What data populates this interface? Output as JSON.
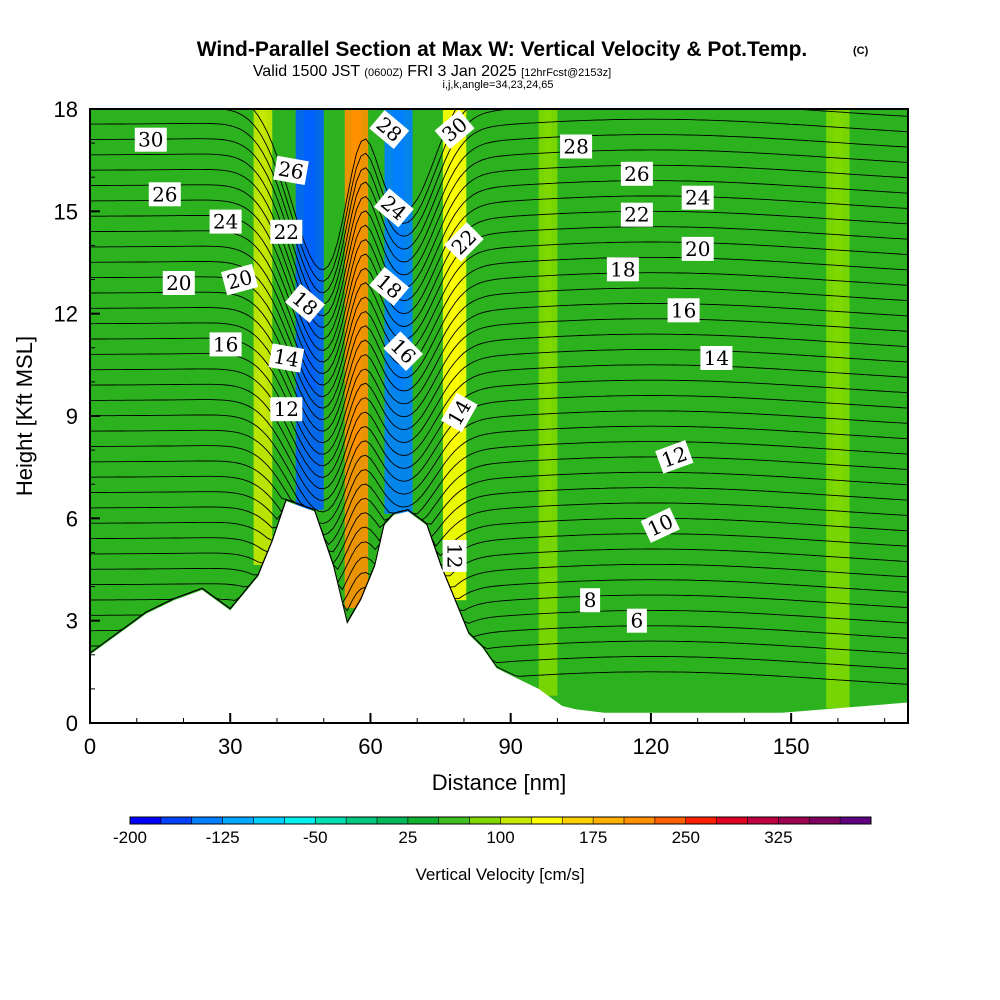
{
  "header": {
    "title": "Wind-Parallel Section at Max W: Vertical Velocity & Pot.Temp.",
    "title_mark": "(C)",
    "valid_prefix": "Valid 1500 JST",
    "valid_utc": "(0600Z)",
    "valid_date": "FRI 3 Jan 2025",
    "forecast_info": "[12hrFcst@2153z]",
    "grid_info": "i,j,k,angle=34,23,24,65"
  },
  "chart_data": {
    "type": "heatmap",
    "xlabel": "Distance [nm]",
    "ylabel": "Height [Kft MSL]",
    "xlim": [
      0,
      175
    ],
    "ylim": [
      0,
      18
    ],
    "x_ticks": [
      "0",
      "30",
      "60",
      "90",
      "120",
      "150"
    ],
    "y_ticks": [
      "0",
      "3",
      "6",
      "9",
      "12",
      "15",
      "18"
    ],
    "colorbar": {
      "label": "Vertical Velocity [cm/s]",
      "tick_labels": [
        "-200",
        "-125",
        "-50",
        "25",
        "100",
        "175",
        "250",
        "325"
      ],
      "colors": [
        "#0000ff",
        "#0040ff",
        "#0080ff",
        "#00a8ff",
        "#00d0ff",
        "#00f0f0",
        "#00e0b0",
        "#00c880",
        "#00b85a",
        "#10b030",
        "#40c020",
        "#80d800",
        "#c8e800",
        "#ffff00",
        "#ffd000",
        "#ffb000",
        "#ff9000",
        "#ff6000",
        "#ff2000",
        "#e00020",
        "#c00040",
        "#a00050",
        "#800060",
        "#600080"
      ]
    },
    "vertical_velocity_bands": [
      {
        "x_center": 47,
        "width": 6,
        "min": -150,
        "color": "#0060ff"
      },
      {
        "x_center": 57,
        "width": 5,
        "min": 175,
        "color": "#ff9000"
      },
      {
        "x_center": 66,
        "width": 6,
        "min": -150,
        "color": "#0080ff"
      },
      {
        "x_center": 78,
        "width": 5,
        "min": 100,
        "color": "#ffff00"
      },
      {
        "x_center": 37,
        "width": 4,
        "min": 50,
        "color": "#c8e800"
      },
      {
        "x_center": 98,
        "width": 4,
        "min": 50,
        "color": "#80d800"
      },
      {
        "x_center": 160,
        "width": 5,
        "min": 50,
        "color": "#80d800"
      }
    ],
    "terrain_profile": {
      "x": [
        0,
        3,
        6,
        9,
        12,
        15,
        18,
        24,
        30,
        36,
        39,
        42,
        48,
        52,
        55,
        58,
        61,
        63,
        65,
        68,
        72,
        75,
        78,
        81,
        84,
        87,
        90,
        93,
        96,
        99,
        101,
        104,
        110,
        114,
        148,
        175
      ],
      "y": [
        2.0,
        2.3,
        2.6,
        2.9,
        3.2,
        3.4,
        3.6,
        3.9,
        3.3,
        4.3,
        5.3,
        6.5,
        6.2,
        4.6,
        2.9,
        3.6,
        4.6,
        5.8,
        6.1,
        6.2,
        5.8,
        4.6,
        3.6,
        2.6,
        2.2,
        1.6,
        1.4,
        1.2,
        1.0,
        0.7,
        0.5,
        0.4,
        0.3,
        0.3,
        0.3,
        0.6
      ]
    },
    "theta_contour_labels": [
      {
        "text": "30",
        "x": 13,
        "y": 17.1,
        "angle": 0
      },
      {
        "text": "26",
        "x": 16,
        "y": 15.5,
        "angle": 0
      },
      {
        "text": "24",
        "x": 29,
        "y": 14.7,
        "angle": 0
      },
      {
        "text": "22",
        "x": 42,
        "y": 14.4,
        "angle": 0
      },
      {
        "text": "26",
        "x": 43,
        "y": 16.2,
        "angle": 10
      },
      {
        "text": "28",
        "x": 64,
        "y": 17.4,
        "angle": 40
      },
      {
        "text": "30",
        "x": 78,
        "y": 17.4,
        "angle": -40
      },
      {
        "text": "24",
        "x": 65,
        "y": 15.1,
        "angle": 40
      },
      {
        "text": "22",
        "x": 80,
        "y": 14.1,
        "angle": -45
      },
      {
        "text": "20",
        "x": 19,
        "y": 12.9,
        "angle": 0
      },
      {
        "text": "20",
        "x": 32,
        "y": 13.0,
        "angle": -15
      },
      {
        "text": "18",
        "x": 46,
        "y": 12.3,
        "angle": 40
      },
      {
        "text": "18",
        "x": 64,
        "y": 12.8,
        "angle": 40
      },
      {
        "text": "16",
        "x": 29,
        "y": 11.1,
        "angle": 0
      },
      {
        "text": "16",
        "x": 67,
        "y": 10.9,
        "angle": 45
      },
      {
        "text": "14",
        "x": 42,
        "y": 10.7,
        "angle": 10
      },
      {
        "text": "12",
        "x": 42,
        "y": 9.2,
        "angle": 0
      },
      {
        "text": "14",
        "x": 79,
        "y": 9.1,
        "angle": -60
      },
      {
        "text": "28",
        "x": 104,
        "y": 16.9,
        "angle": 0
      },
      {
        "text": "26",
        "x": 117,
        "y": 16.1,
        "angle": 0
      },
      {
        "text": "24",
        "x": 130,
        "y": 15.4,
        "angle": 0
      },
      {
        "text": "22",
        "x": 117,
        "y": 14.9,
        "angle": 0
      },
      {
        "text": "20",
        "x": 130,
        "y": 13.9,
        "angle": 0
      },
      {
        "text": "18",
        "x": 114,
        "y": 13.3,
        "angle": 0
      },
      {
        "text": "16",
        "x": 127,
        "y": 12.1,
        "angle": 0
      },
      {
        "text": "14",
        "x": 134,
        "y": 10.7,
        "angle": 0
      },
      {
        "text": "12",
        "x": 125,
        "y": 7.8,
        "angle": -20
      },
      {
        "text": "10",
        "x": 122,
        "y": 5.8,
        "angle": -25
      },
      {
        "text": "12",
        "x": 78,
        "y": 4.9,
        "angle": 90
      },
      {
        "text": "8",
        "x": 107,
        "y": 3.6,
        "angle": 0
      },
      {
        "text": "6",
        "x": 117,
        "y": 3.0,
        "angle": 0
      }
    ]
  }
}
